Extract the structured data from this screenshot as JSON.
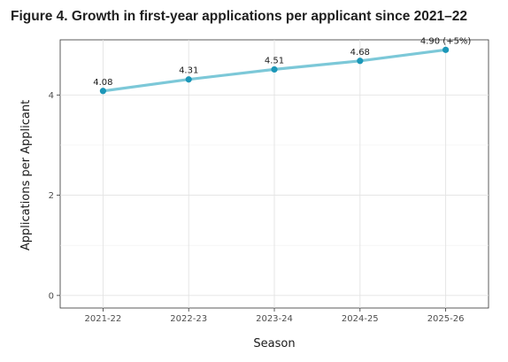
{
  "chart_data": {
    "type": "line",
    "title": "Figure 4. Growth in first-year applications per applicant since 2021–22",
    "xlabel": "Season",
    "ylabel": "Applications per Applicant",
    "categories": [
      "2021-22",
      "2022-23",
      "2023-24",
      "2024-25",
      "2025-26"
    ],
    "series": [
      {
        "values": [
          4.08,
          4.31,
          4.51,
          4.68,
          4.9
        ]
      }
    ],
    "data_labels": [
      "4.08",
      "4.31",
      "4.51",
      "4.68",
      "4.90 (+5%)"
    ],
    "ylim": [
      -0.25,
      5.1
    ],
    "yticks": [
      0,
      2,
      4
    ],
    "ytick_labels": [
      "0",
      "2",
      "4"
    ],
    "grid": true,
    "line_color": "#7cc8d8",
    "marker_color": "#1c97b8"
  }
}
